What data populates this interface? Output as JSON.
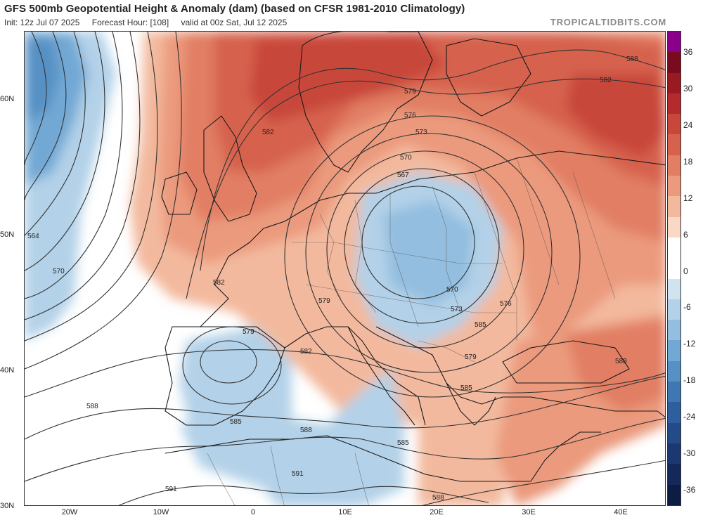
{
  "header": {
    "title": "GFS 500mb Geopotential Height & Anomaly (dam) (based on CFSR 1981-2010 Climatology)",
    "init": "Init: 12z Jul 07 2025",
    "forecast_hour": "Forecast Hour: [108]",
    "valid": "valid at 00z Sat, Jul 12 2025",
    "brand": "TROPICALTIDBITS.COM"
  },
  "axes": {
    "lat_labels": [
      "60N",
      "50N",
      "40N",
      "30N"
    ],
    "lon_labels": [
      "20W",
      "10W",
      "0",
      "10E",
      "20E",
      "30E",
      "40E"
    ]
  },
  "contour_labels": [
    "579",
    "582",
    "564",
    "570",
    "582",
    "579",
    "576",
    "573",
    "570",
    "567",
    "570",
    "573",
    "576",
    "579",
    "582",
    "585",
    "588",
    "585",
    "588",
    "588",
    "591",
    "591",
    "588",
    "585",
    "582",
    "579",
    "585",
    "588"
  ],
  "colorbar": {
    "ticks": [
      "36",
      "30",
      "24",
      "18",
      "12",
      "6",
      "0",
      "-6",
      "-12",
      "-18",
      "-24",
      "-30",
      "-36"
    ],
    "colors": [
      "#8b008b",
      "#7a0a20",
      "#9a1a22",
      "#b52a2c",
      "#c8473b",
      "#d6624e",
      "#e17e63",
      "#eb9a7d",
      "#f3b99e",
      "#f9d8c5",
      "#ffffff",
      "#ffffff",
      "#d2e3f0",
      "#b3d1e8",
      "#93bedf",
      "#72a8d4",
      "#5690c4",
      "#3f77b3",
      "#2f5e9e",
      "#244a87",
      "#1b3870",
      "#14285a",
      "#0d1c45"
    ]
  }
}
